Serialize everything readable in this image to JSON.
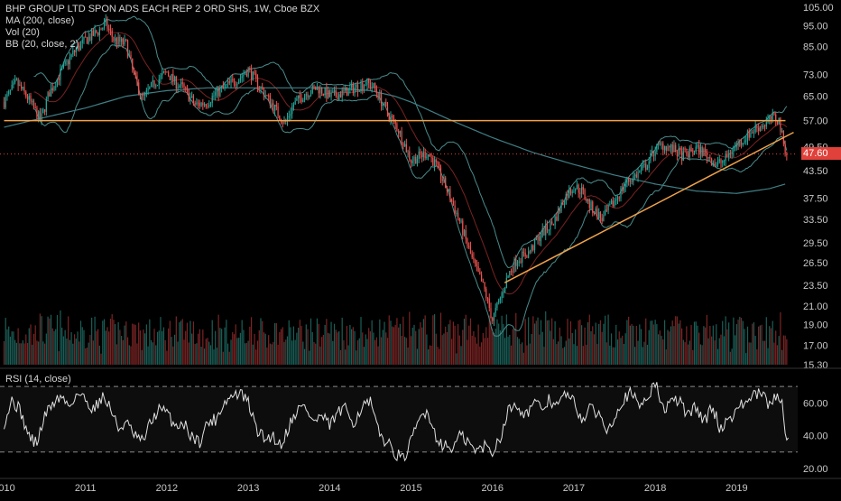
{
  "chart_data": [
    {
      "type": "candlestick",
      "title": "BHP GROUP LTD SPON ADS EACH REP 2 ORD SHS, 1W, Cboe BZX",
      "indicators": [
        "MA (200, close)",
        "Vol (20)",
        "BB (20, close, 2)"
      ],
      "y_scale": "log",
      "ylim": [
        15.3,
        105.0
      ],
      "y_ticks": [
        "105.00",
        "95.00",
        "85.00",
        "73.00",
        "65.00",
        "57.00",
        "49.50",
        "43.50",
        "37.50",
        "33.50",
        "29.50",
        "26.50",
        "23.50",
        "21.00",
        "19.00",
        "17.00",
        "15.30"
      ],
      "x_ticks": [
        "2010",
        "2011",
        "2012",
        "2013",
        "2014",
        "2015",
        "2016",
        "2017",
        "2018",
        "2019"
      ],
      "x_range": [
        2010.0,
        2019.7
      ],
      "last_price": "47.60",
      "price_path": [
        [
          2010.0,
          63
        ],
        [
          2010.15,
          70
        ],
        [
          2010.3,
          64
        ],
        [
          2010.45,
          57
        ],
        [
          2010.55,
          66
        ],
        [
          2010.7,
          74
        ],
        [
          2010.85,
          82
        ],
        [
          2011.0,
          88
        ],
        [
          2011.15,
          92
        ],
        [
          2011.25,
          96
        ],
        [
          2011.35,
          88
        ],
        [
          2011.5,
          86
        ],
        [
          2011.6,
          72
        ],
        [
          2011.7,
          64
        ],
        [
          2011.85,
          70
        ],
        [
          2012.0,
          74
        ],
        [
          2012.1,
          70
        ],
        [
          2012.2,
          68
        ],
        [
          2012.35,
          62
        ],
        [
          2012.5,
          63
        ],
        [
          2012.6,
          66
        ],
        [
          2012.75,
          69
        ],
        [
          2012.9,
          72
        ],
        [
          2013.0,
          75
        ],
        [
          2013.15,
          68
        ],
        [
          2013.3,
          62
        ],
        [
          2013.45,
          56
        ],
        [
          2013.55,
          62
        ],
        [
          2013.7,
          66
        ],
        [
          2013.85,
          68
        ],
        [
          2014.0,
          65
        ],
        [
          2014.15,
          66
        ],
        [
          2014.3,
          68
        ],
        [
          2014.45,
          70
        ],
        [
          2014.55,
          68
        ],
        [
          2014.7,
          60
        ],
        [
          2014.85,
          54
        ],
        [
          2015.0,
          46
        ],
        [
          2015.1,
          47
        ],
        [
          2015.2,
          48
        ],
        [
          2015.3,
          45
        ],
        [
          2015.45,
          39
        ],
        [
          2015.6,
          33
        ],
        [
          2015.75,
          27
        ],
        [
          2015.9,
          23
        ],
        [
          2016.0,
          19.5
        ],
        [
          2016.1,
          22
        ],
        [
          2016.2,
          25
        ],
        [
          2016.3,
          27
        ],
        [
          2016.45,
          28
        ],
        [
          2016.6,
          31
        ],
        [
          2016.75,
          33
        ],
        [
          2016.9,
          38
        ],
        [
          2017.0,
          40
        ],
        [
          2017.1,
          39
        ],
        [
          2017.2,
          36
        ],
        [
          2017.35,
          33.5
        ],
        [
          2017.5,
          37
        ],
        [
          2017.65,
          41
        ],
        [
          2017.8,
          43
        ],
        [
          2017.9,
          45
        ],
        [
          2018.0,
          49
        ],
        [
          2018.1,
          50
        ],
        [
          2018.2,
          49
        ],
        [
          2018.35,
          47
        ],
        [
          2018.5,
          49
        ],
        [
          2018.6,
          48
        ],
        [
          2018.75,
          45
        ],
        [
          2018.85,
          46
        ],
        [
          2018.95,
          49
        ],
        [
          2019.1,
          52
        ],
        [
          2019.25,
          55
        ],
        [
          2019.35,
          56
        ],
        [
          2019.45,
          58
        ],
        [
          2019.52,
          57
        ],
        [
          2019.58,
          50
        ],
        [
          2019.62,
          47.6
        ]
      ],
      "ma200_path": [
        [
          2010.0,
          55
        ],
        [
          2010.5,
          58
        ],
        [
          2011.0,
          61
        ],
        [
          2011.5,
          65
        ],
        [
          2012.0,
          67
        ],
        [
          2012.5,
          68
        ],
        [
          2013.0,
          68
        ],
        [
          2013.5,
          68
        ],
        [
          2014.0,
          68
        ],
        [
          2014.5,
          67
        ],
        [
          2014.8,
          65
        ],
        [
          2015.0,
          63
        ],
        [
          2015.5,
          57
        ],
        [
          2016.0,
          52
        ],
        [
          2016.5,
          48
        ],
        [
          2017.0,
          45
        ],
        [
          2017.5,
          42.5
        ],
        [
          2018.0,
          40.5
        ],
        [
          2018.5,
          39
        ],
        [
          2019.0,
          38.5
        ],
        [
          2019.4,
          39.5
        ],
        [
          2019.6,
          40.5
        ]
      ],
      "annotations": [
        {
          "kind": "horizontal-resistance",
          "y": 57.0,
          "x_start": 2010.0,
          "x_end": 2019.6,
          "color": "#f0a24a"
        },
        {
          "kind": "rising-trendline",
          "from": [
            2016.15,
            23.8
          ],
          "to": [
            2019.7,
            53.5
          ],
          "color": "#f0a24a"
        },
        {
          "kind": "last-price-line",
          "y": 47.6,
          "color": "#e0413a"
        }
      ],
      "colors": {
        "up": "#26a69a",
        "down": "#ef5350",
        "bands": "#4a8c8c",
        "ma": "#8a2a2a",
        "volume_up": "#1e6e66",
        "volume_down": "#8e2a2a"
      }
    },
    {
      "type": "line",
      "title": "RSI (14, close)",
      "ylim": [
        15,
        80
      ],
      "y_ticks": [
        "60.00",
        "40.00",
        "20.00"
      ],
      "bands": [
        70,
        30
      ],
      "rsi_path": [
        [
          2010.0,
          48
        ],
        [
          2010.1,
          62
        ],
        [
          2010.2,
          55
        ],
        [
          2010.3,
          40
        ],
        [
          2010.4,
          35
        ],
        [
          2010.5,
          52
        ],
        [
          2010.6,
          60
        ],
        [
          2010.7,
          64
        ],
        [
          2010.8,
          58
        ],
        [
          2010.9,
          66
        ],
        [
          2011.0,
          62
        ],
        [
          2011.1,
          56
        ],
        [
          2011.2,
          64
        ],
        [
          2011.3,
          58
        ],
        [
          2011.4,
          44
        ],
        [
          2011.5,
          48
        ],
        [
          2011.6,
          40
        ],
        [
          2011.7,
          36
        ],
        [
          2011.8,
          48
        ],
        [
          2011.9,
          56
        ],
        [
          2012.0,
          54
        ],
        [
          2012.1,
          46
        ],
        [
          2012.2,
          48
        ],
        [
          2012.3,
          40
        ],
        [
          2012.4,
          36
        ],
        [
          2012.5,
          48
        ],
        [
          2012.6,
          50
        ],
        [
          2012.7,
          60
        ],
        [
          2012.8,
          64
        ],
        [
          2012.9,
          66
        ],
        [
          2013.0,
          60
        ],
        [
          2013.1,
          44
        ],
        [
          2013.2,
          38
        ],
        [
          2013.3,
          40
        ],
        [
          2013.4,
          34
        ],
        [
          2013.5,
          46
        ],
        [
          2013.6,
          56
        ],
        [
          2013.7,
          58
        ],
        [
          2013.8,
          48
        ],
        [
          2013.9,
          52
        ],
        [
          2014.0,
          46
        ],
        [
          2014.1,
          54
        ],
        [
          2014.2,
          56
        ],
        [
          2014.3,
          48
        ],
        [
          2014.4,
          58
        ],
        [
          2014.5,
          60
        ],
        [
          2014.6,
          42
        ],
        [
          2014.7,
          36
        ],
        [
          2014.8,
          30
        ],
        [
          2014.9,
          25
        ],
        [
          2015.0,
          36
        ],
        [
          2015.1,
          50
        ],
        [
          2015.2,
          56
        ],
        [
          2015.3,
          40
        ],
        [
          2015.4,
          34
        ],
        [
          2015.5,
          32
        ],
        [
          2015.6,
          40
        ],
        [
          2015.7,
          36
        ],
        [
          2015.8,
          30
        ],
        [
          2015.9,
          34
        ],
        [
          2016.0,
          30
        ],
        [
          2016.1,
          40
        ],
        [
          2016.2,
          56
        ],
        [
          2016.3,
          60
        ],
        [
          2016.4,
          52
        ],
        [
          2016.5,
          60
        ],
        [
          2016.6,
          56
        ],
        [
          2016.7,
          62
        ],
        [
          2016.8,
          58
        ],
        [
          2016.9,
          66
        ],
        [
          2017.0,
          60
        ],
        [
          2017.1,
          50
        ],
        [
          2017.2,
          56
        ],
        [
          2017.3,
          54
        ],
        [
          2017.4,
          44
        ],
        [
          2017.5,
          52
        ],
        [
          2017.6,
          62
        ],
        [
          2017.7,
          66
        ],
        [
          2017.8,
          58
        ],
        [
          2017.9,
          64
        ],
        [
          2018.0,
          72
        ],
        [
          2018.1,
          56
        ],
        [
          2018.2,
          60
        ],
        [
          2018.3,
          62
        ],
        [
          2018.4,
          52
        ],
        [
          2018.5,
          58
        ],
        [
          2018.6,
          48
        ],
        [
          2018.7,
          58
        ],
        [
          2018.8,
          44
        ],
        [
          2018.9,
          50
        ],
        [
          2019.0,
          56
        ],
        [
          2019.1,
          60
        ],
        [
          2019.2,
          64
        ],
        [
          2019.3,
          66
        ],
        [
          2019.4,
          58
        ],
        [
          2019.5,
          66
        ],
        [
          2019.55,
          62
        ],
        [
          2019.6,
          42
        ],
        [
          2019.65,
          37
        ]
      ]
    }
  ]
}
